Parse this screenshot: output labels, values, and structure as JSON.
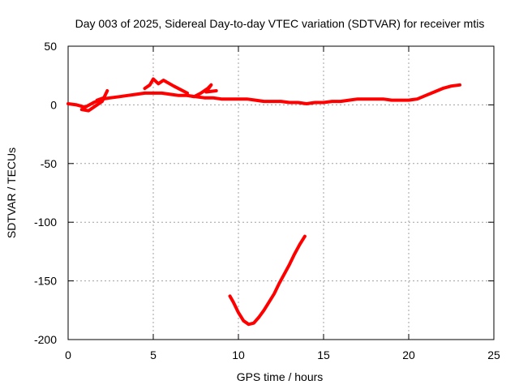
{
  "chart_data": {
    "type": "line",
    "title": "Day 003 of 2025, Sidereal Day-to-day VTEC variation (SDTVAR) for receiver mtis",
    "xlabel": "GPS time / hours",
    "ylabel": "SDTVAR / TECUs",
    "xlim": [
      0,
      25
    ],
    "ylim": [
      -200,
      50
    ],
    "xticks": [
      0,
      5,
      10,
      15,
      20,
      25
    ],
    "yticks": [
      -200,
      -150,
      -100,
      -50,
      0,
      50
    ],
    "grid": true,
    "line_color": "#ff0000",
    "series": [
      {
        "values": [
          [
            0.0,
            1
          ],
          [
            0.5,
            0
          ],
          [
            1.0,
            -2
          ],
          [
            1.5,
            2
          ],
          [
            2.0,
            5
          ],
          [
            2.5,
            6
          ],
          [
            3.0,
            7
          ],
          [
            3.5,
            8
          ],
          [
            4.0,
            9
          ],
          [
            4.5,
            10
          ],
          [
            5.0,
            10
          ],
          [
            5.5,
            10
          ],
          [
            6.0,
            9
          ],
          [
            6.5,
            8
          ],
          [
            7.0,
            8
          ],
          [
            7.5,
            7
          ],
          [
            8.0,
            6
          ],
          [
            8.5,
            6
          ],
          [
            9.0,
            5
          ],
          [
            9.5,
            5
          ],
          [
            10.0,
            5
          ],
          [
            10.5,
            5
          ],
          [
            11.0,
            4
          ],
          [
            11.5,
            3
          ],
          [
            12.0,
            3
          ],
          [
            12.5,
            3
          ],
          [
            13.0,
            2
          ],
          [
            13.5,
            2
          ],
          [
            14.0,
            1
          ],
          [
            14.5,
            2
          ],
          [
            15.0,
            2
          ],
          [
            15.5,
            3
          ],
          [
            16.0,
            3
          ],
          [
            16.5,
            4
          ],
          [
            17.0,
            5
          ],
          [
            17.5,
            5
          ],
          [
            18.0,
            5
          ],
          [
            18.5,
            5
          ],
          [
            19.0,
            4
          ],
          [
            19.5,
            4
          ],
          [
            20.0,
            4
          ],
          [
            20.5,
            5
          ],
          [
            21.0,
            8
          ],
          [
            21.5,
            11
          ],
          [
            22.0,
            14
          ],
          [
            22.5,
            16
          ],
          [
            23.0,
            17
          ]
        ]
      },
      {
        "values": [
          [
            9.5,
            -163
          ],
          [
            9.7,
            -168
          ],
          [
            10.0,
            -177
          ],
          [
            10.3,
            -184
          ],
          [
            10.6,
            -187
          ],
          [
            10.9,
            -186
          ],
          [
            11.2,
            -181
          ],
          [
            11.5,
            -175
          ],
          [
            11.8,
            -168
          ],
          [
            12.1,
            -161
          ],
          [
            12.4,
            -152
          ],
          [
            12.7,
            -144
          ],
          [
            13.0,
            -136
          ],
          [
            13.3,
            -127
          ],
          [
            13.6,
            -119
          ],
          [
            13.9,
            -112
          ]
        ]
      },
      {
        "values": [
          [
            0.8,
            -4
          ],
          [
            1.2,
            -5
          ],
          [
            1.6,
            -1
          ],
          [
            2.0,
            3
          ],
          [
            2.3,
            12
          ],
          [
            2.1,
            6
          ],
          [
            1.7,
            4
          ]
        ]
      },
      {
        "values": [
          [
            4.5,
            14
          ],
          [
            4.8,
            17
          ],
          [
            5.0,
            22
          ],
          [
            5.3,
            18
          ],
          [
            5.6,
            21
          ],
          [
            6.2,
            16
          ],
          [
            7.0,
            10
          ]
        ]
      },
      {
        "values": [
          [
            7.0,
            8
          ],
          [
            7.4,
            7
          ],
          [
            7.8,
            10
          ],
          [
            8.2,
            14
          ],
          [
            8.4,
            17
          ],
          [
            8.1,
            11
          ],
          [
            8.7,
            12
          ]
        ]
      }
    ]
  }
}
